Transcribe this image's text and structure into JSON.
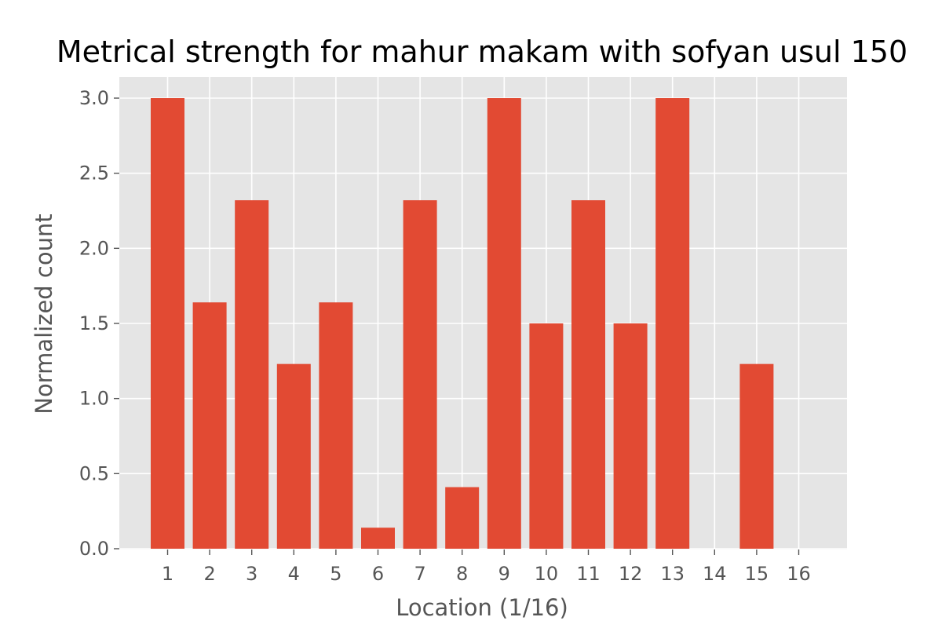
{
  "chart_data": {
    "type": "bar",
    "title": "Metrical strength for mahur makam with sofyan usul 150",
    "xlabel": "Location (1/16)",
    "ylabel": "Normalized count",
    "categories": [
      "1",
      "2",
      "3",
      "4",
      "5",
      "6",
      "7",
      "8",
      "9",
      "10",
      "11",
      "12",
      "13",
      "14",
      "15",
      "16"
    ],
    "values": [
      3.0,
      1.64,
      2.32,
      1.23,
      1.64,
      0.14,
      2.32,
      0.41,
      3.0,
      1.5,
      2.32,
      1.5,
      3.0,
      0.0,
      1.23,
      0.0
    ],
    "ylim": [
      0,
      3.0
    ],
    "yticks": [
      "0.0",
      "0.5",
      "1.0",
      "1.5",
      "2.0",
      "2.5",
      "3.0"
    ],
    "grid": true,
    "bar_color": "#E24A33",
    "plot_background": "#E5E5E5",
    "grid_color": "#FFFFFF"
  }
}
